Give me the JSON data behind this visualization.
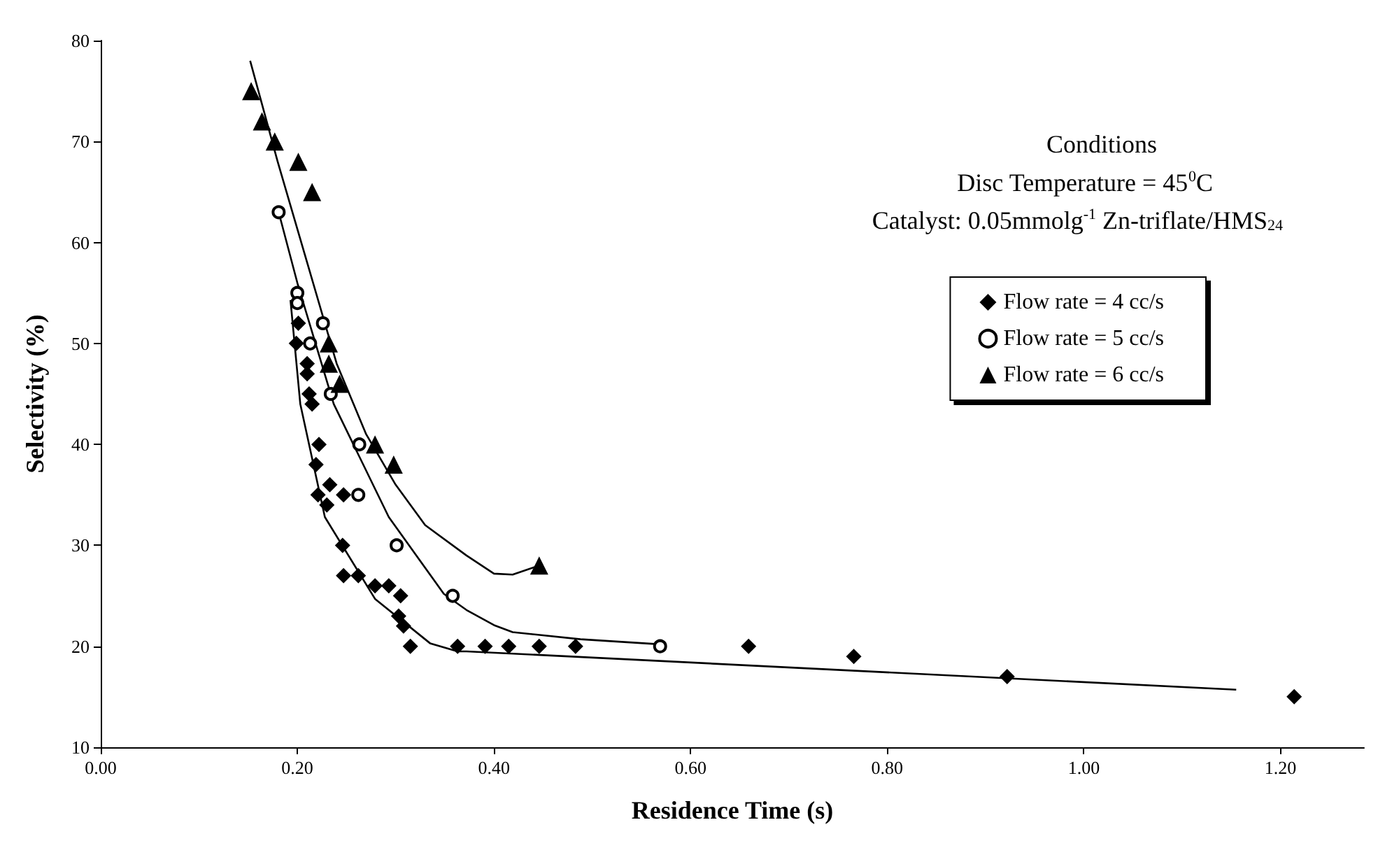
{
  "chart_data": {
    "type": "scatter",
    "xlabel": "Residence Time (s)",
    "ylabel": "Selectivity (%)",
    "xlim": [
      0,
      1.285
    ],
    "ylim": [
      10,
      80
    ],
    "xticks": [
      {
        "value": 0,
        "label": "0.00"
      },
      {
        "value": 0.2,
        "label": "0.20"
      },
      {
        "value": 0.4,
        "label": "0.40"
      },
      {
        "value": 0.6,
        "label": "0.60"
      },
      {
        "value": 0.8,
        "label": "0.80"
      },
      {
        "value": 1.0,
        "label": "1.00"
      },
      {
        "value": 1.2,
        "label": "1.20"
      }
    ],
    "yticks": [
      10,
      20,
      30,
      40,
      50,
      60,
      70,
      80
    ],
    "grid": false,
    "legend": "top right",
    "annotations": [
      "Conditions",
      "Disc Temperature = 45$^{0}$C",
      "Catalyst: 0.05mmolg$^{-1}$ Zn-triflate/HMS$_{24}$"
    ],
    "series": [
      {
        "name": "Flow rate = 4 cc/s",
        "color": "#000000",
        "marker": "diamond",
        "x": [
          0.201,
          0.199,
          0.21,
          0.21,
          0.212,
          0.215,
          0.222,
          0.219,
          0.221,
          0.233,
          0.247,
          0.23,
          0.246,
          0.247,
          0.262,
          0.279,
          0.293,
          0.305,
          0.303,
          0.308,
          0.315,
          0.363,
          0.391,
          0.415,
          0.446,
          0.483,
          0.659,
          0.766,
          0.922,
          1.214
        ],
        "values": [
          52,
          50,
          48,
          47,
          45,
          44,
          40,
          38,
          35,
          36,
          35,
          34,
          30,
          27,
          27,
          26,
          26,
          25,
          23,
          22,
          20,
          20,
          20,
          20,
          20,
          20,
          20,
          19,
          17,
          15
        ]
      },
      {
        "name": "Flow rate = 5 cc/s",
        "color": "#000000",
        "marker": "circle",
        "x": [
          0.181,
          0.2,
          0.2,
          0.226,
          0.213,
          0.234,
          0.263,
          0.262,
          0.301,
          0.358,
          0.569
        ],
        "values": [
          63,
          55,
          54,
          52,
          50,
          45,
          40,
          35,
          30,
          25,
          20
        ]
      },
      {
        "name": "Flow rate = 6 cc/s",
        "color": "#000000",
        "marker": "triangle",
        "x": [
          0.153,
          0.164,
          0.177,
          0.201,
          0.215,
          0.232,
          0.232,
          0.243,
          0.279,
          0.298,
          0.446
        ],
        "values": [
          75,
          72,
          70,
          68,
          65,
          50,
          48,
          46,
          40,
          38,
          28
        ]
      },
      {
        "type": "line",
        "color": "#000000",
        "marker": "none",
        "x": [
          0.193,
          0.203,
          0.228,
          0.279,
          0.335,
          0.363,
          0.372,
          1.155
        ],
        "values": [
          54.3,
          44,
          32.8,
          24.7,
          20.3,
          19.5,
          19.5,
          15.7
        ]
      },
      {
        "type": "line",
        "color": "#000000",
        "marker": "none",
        "x": [
          0.181,
          0.2,
          0.237,
          0.293,
          0.349,
          0.372,
          0.4,
          0.419,
          0.488,
          0.569
        ],
        "values": [
          63,
          56,
          44,
          32.8,
          25.2,
          23.6,
          22.1,
          21.4,
          20.7,
          20.2
        ]
      },
      {
        "type": "line",
        "color": "#000000",
        "marker": "none",
        "x": [
          0.152,
          0.18,
          0.21,
          0.24,
          0.27,
          0.3,
          0.33,
          0.372,
          0.4,
          0.419,
          0.446
        ],
        "values": [
          78,
          68,
          58,
          48,
          41,
          36,
          32,
          29,
          27.2,
          27.1,
          28
        ]
      }
    ]
  }
}
